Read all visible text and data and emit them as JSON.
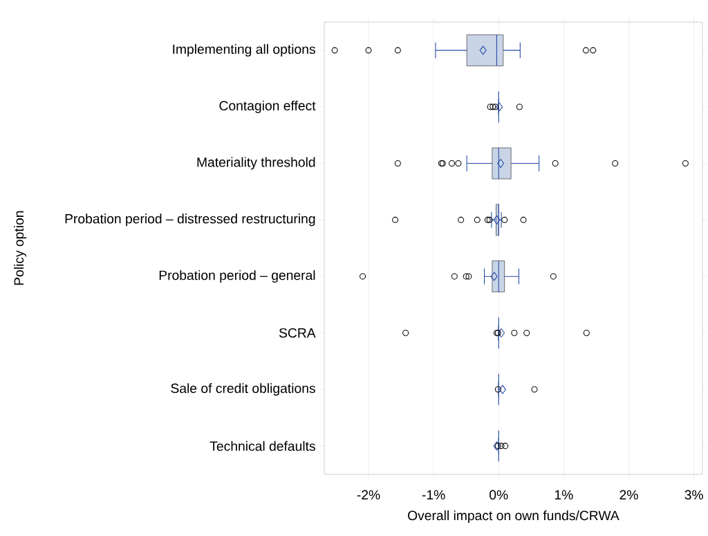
{
  "chart_data": {
    "type": "box",
    "orientation": "horizontal",
    "xlabel": "Overall impact on own funds/CRWA",
    "ylabel": "Policy option",
    "categories": [
      "Implementing all options",
      "Contagion effect",
      "Materiality threshold",
      "Probation period – distressed restructuring",
      "Probation period – general",
      "SCRA",
      "Sale of credit obligations",
      "Technical defaults"
    ],
    "color": "#c9d4e6",
    "grid": "x",
    "marker": "circle",
    "xlim": [
      -2.68,
      3.13
    ],
    "xticks": [
      {
        "value": -2,
        "label": "-2%"
      },
      {
        "value": -1,
        "label": "-1%"
      },
      {
        "value": 0,
        "label": "0%"
      },
      {
        "value": 1,
        "label": "1%"
      },
      {
        "value": 2,
        "label": "2%"
      },
      {
        "value": 3,
        "label": "3%"
      }
    ],
    "boxes": [
      {
        "low": -0.97,
        "q1": -0.49,
        "median": -0.03,
        "q3": 0.07,
        "high": 0.33,
        "mean": -0.24,
        "outliers": [
          -2.52,
          -2.0,
          -1.55,
          1.34,
          1.45
        ]
      },
      {
        "low": 0,
        "q1": 0,
        "median": 0,
        "q3": 0,
        "high": 0,
        "mean": 0.01,
        "outliers": [
          -0.13,
          -0.09,
          -0.05,
          0.32
        ]
      },
      {
        "low": -0.49,
        "q1": -0.1,
        "median": 0,
        "q3": 0.19,
        "high": 0.62,
        "mean": 0.03,
        "outliers": [
          -1.55,
          -0.88,
          -0.86,
          -0.72,
          -0.62,
          0.87,
          1.79,
          2.87
        ]
      },
      {
        "low": -0.11,
        "q1": -0.04,
        "median": 0,
        "q3": 0,
        "high": 0.04,
        "mean": -0.03,
        "outliers": [
          -1.59,
          -0.58,
          -0.33,
          -0.17,
          -0.14,
          0.09,
          0.38
        ]
      },
      {
        "low": -0.22,
        "q1": -0.1,
        "median": 0,
        "q3": 0.09,
        "high": 0.31,
        "mean": -0.07,
        "outliers": [
          -2.09,
          -0.68,
          -0.5,
          -0.46,
          0.84
        ]
      },
      {
        "low": 0,
        "q1": 0,
        "median": 0,
        "q3": 0,
        "high": 0,
        "mean": 0.04,
        "outliers": [
          -1.43,
          -0.03,
          -0.01,
          0.24,
          0.43,
          1.35
        ]
      },
      {
        "low": 0,
        "q1": 0,
        "median": 0,
        "q3": 0,
        "high": 0,
        "mean": 0.06,
        "outliers": [
          -0.01,
          0.55
        ]
      },
      {
        "low": 0,
        "q1": 0,
        "median": 0,
        "q3": 0,
        "high": 0,
        "mean": -0.03,
        "outliers": [
          -0.01,
          0.04,
          0.1
        ]
      }
    ]
  }
}
